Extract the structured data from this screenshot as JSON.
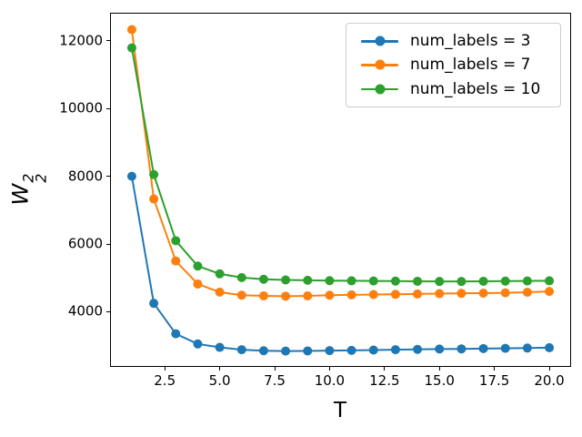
{
  "chart_data": {
    "type": "line",
    "title": "",
    "xlabel": "T",
    "ylabel": "W_2^2",
    "ylabel_base": "W",
    "ylabel_sup": "2",
    "ylabel_sub": "2",
    "marker": "o",
    "grid": false,
    "background": "#ffffff",
    "xlim": [
      0.05,
      20.95
    ],
    "ylim": [
      2400,
      12800
    ],
    "xticks": [
      2.5,
      5.0,
      7.5,
      10.0,
      12.5,
      15.0,
      17.5,
      20.0
    ],
    "xtick_labels": [
      "2.5",
      "5.0",
      "7.5",
      "10.0",
      "12.5",
      "15.0",
      "17.5",
      "20.0"
    ],
    "yticks": [
      4000,
      6000,
      8000,
      10000,
      12000
    ],
    "ytick_labels": [
      "4000",
      "6000",
      "8000",
      "10000",
      "12000"
    ],
    "x": [
      1,
      2,
      3,
      4,
      5,
      6,
      7,
      8,
      9,
      10,
      11,
      12,
      13,
      14,
      15,
      16,
      17,
      18,
      19,
      20
    ],
    "series": [
      {
        "name": "num_labels = 3",
        "color": "#1f77b4",
        "values": [
          8000,
          4250,
          3350,
          3050,
          2950,
          2880,
          2850,
          2840,
          2845,
          2855,
          2860,
          2870,
          2880,
          2890,
          2900,
          2905,
          2915,
          2920,
          2930,
          2940
        ]
      },
      {
        "name": "num_labels = 7",
        "color": "#ff7f0e",
        "values": [
          12330,
          7330,
          5500,
          4820,
          4580,
          4490,
          4470,
          4460,
          4470,
          4490,
          4500,
          4510,
          4515,
          4525,
          4535,
          4545,
          4550,
          4560,
          4575,
          4600
        ]
      },
      {
        "name": "num_labels = 10",
        "color": "#2ca02c",
        "values": [
          11790,
          8050,
          6100,
          5350,
          5120,
          5010,
          4960,
          4940,
          4930,
          4920,
          4915,
          4910,
          4905,
          4900,
          4895,
          4895,
          4900,
          4905,
          4910,
          4915
        ]
      }
    ],
    "legend": {
      "position": "upper right"
    }
  }
}
